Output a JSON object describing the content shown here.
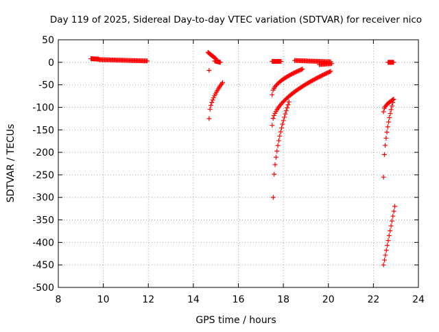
{
  "chart_data": {
    "type": "scatter",
    "title": "Day 119 of 2025, Sidereal Day-to-day VTEC variation (SDTVAR) for receiver nico",
    "xlabel": "GPS time / hours",
    "ylabel": "SDTVAR / TECUs",
    "xlim": [
      8,
      24
    ],
    "ylim": [
      -500,
      50
    ],
    "xticks": [
      8,
      10,
      12,
      14,
      16,
      18,
      20,
      22,
      24
    ],
    "yticks": [
      50,
      0,
      -50,
      -100,
      -150,
      -200,
      -250,
      -300,
      -350,
      -400,
      -450,
      -500
    ],
    "grid": true,
    "marker": "+",
    "color": "#ff0000",
    "segments": [
      {
        "x0": 9.45,
        "x1": 9.8,
        "y": [
          8,
          7
        ]
      },
      {
        "x0": 9.8,
        "x1": 11.95,
        "y": [
          6,
          3
        ]
      },
      {
        "x0": 14.65,
        "x1": 15.0,
        "y": [
          22,
          8
        ]
      },
      {
        "x0": 14.95,
        "x1": 15.2,
        "y": [
          3,
          0
        ]
      },
      {
        "x0": 14.7,
        "x1": 15.3,
        "y": [
          -125,
          -45
        ],
        "curve": "sqrt"
      },
      {
        "x0": 17.5,
        "x1": 17.9,
        "y": [
          2,
          2
        ]
      },
      {
        "x0": 17.5,
        "x1": 18.85,
        "y": [
          -72,
          -15
        ],
        "curve": "sqrt"
      },
      {
        "x0": 17.5,
        "x1": 20.1,
        "y": [
          -140,
          -20
        ],
        "curve": "sqrt"
      },
      {
        "x0": 17.55,
        "x1": 18.25,
        "y": [
          -300,
          -88
        ],
        "curve": "sqrt"
      },
      {
        "x0": 18.5,
        "x1": 20.1,
        "y": [
          4,
          1
        ]
      },
      {
        "x0": 19.6,
        "x1": 20.15,
        "y": [
          -5,
          -3
        ]
      },
      {
        "x0": 22.45,
        "x1": 22.9,
        "y": [
          -110,
          -82
        ],
        "curve": "sqrt"
      },
      {
        "x0": 22.45,
        "x1": 22.9,
        "y": [
          -255,
          -82
        ],
        "curve": "sqrt"
      },
      {
        "x0": 22.45,
        "x1": 22.95,
        "y": [
          -450,
          -320
        ]
      },
      {
        "x0": 22.65,
        "x1": 22.9,
        "y": [
          0,
          0
        ]
      }
    ],
    "points": [
      {
        "x": 14.7,
        "y": -18
      }
    ]
  }
}
